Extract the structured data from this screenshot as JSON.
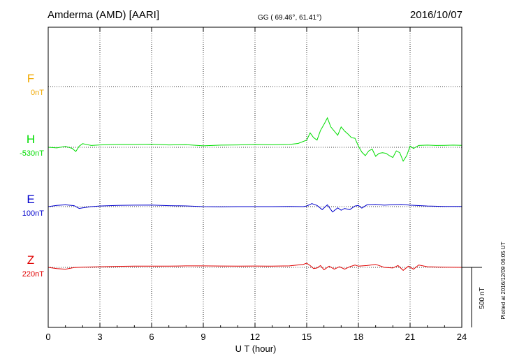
{
  "header": {
    "station": "Amderma (AMD)  [AARI]",
    "coords": "GG ( 69.46°,  61.41°)",
    "date": "2016/10/07"
  },
  "footer_note": "Plotted at 2016/12/09 06:05 UT",
  "scale_label": "500 nT",
  "colors": {
    "F": "#f0a800",
    "H": "#00dd00",
    "E": "#0000cc",
    "Z": "#e00000"
  },
  "chart_data": {
    "type": "line",
    "xlabel": "U T (hour)",
    "xlim": [
      0,
      24
    ],
    "xticks": [
      0,
      3,
      6,
      9,
      12,
      15,
      18,
      21,
      24
    ],
    "scale_nT": 500,
    "grid": true,
    "series": [
      {
        "name": "F",
        "offset_label": "0nT",
        "baseline_nT": 0,
        "x": [],
        "y": []
      },
      {
        "name": "H",
        "offset_label": "-530nT",
        "baseline_nT": -530,
        "x": [
          0,
          0.5,
          1,
          1.4,
          1.6,
          1.8,
          2,
          2.5,
          3,
          4,
          5,
          6,
          7,
          8,
          9,
          10,
          11,
          12,
          13,
          14,
          14.5,
          15,
          15.2,
          15.4,
          15.6,
          15.8,
          16,
          16.2,
          16.4,
          16.6,
          16.8,
          17,
          17.2,
          17.4,
          17.6,
          17.8,
          18,
          18.2,
          18.4,
          18.6,
          18.8,
          19,
          19.2,
          19.4,
          19.6,
          19.8,
          20,
          20.2,
          20.4,
          20.6,
          20.8,
          21,
          21.2,
          21.5,
          22,
          22.5,
          23,
          23.5,
          24
        ],
        "y": [
          -530,
          -535,
          -522,
          -540,
          -565,
          -520,
          -500,
          -515,
          -510,
          -506,
          -506,
          -504,
          -510,
          -508,
          -518,
          -512,
          -510,
          -507,
          -509,
          -506,
          -498,
          -470,
          -410,
          -450,
          -470,
          -390,
          -340,
          -285,
          -360,
          -395,
          -430,
          -360,
          -395,
          -420,
          -450,
          -455,
          -520,
          -570,
          -600,
          -560,
          -545,
          -605,
          -580,
          -575,
          -580,
          -600,
          -615,
          -560,
          -575,
          -645,
          -600,
          -520,
          -540,
          -515,
          -512,
          -515,
          -514,
          -512,
          -514
        ]
      },
      {
        "name": "E",
        "offset_label": "100nT",
        "baseline_nT": 100,
        "x": [
          0,
          0.5,
          1,
          1.5,
          1.8,
          2,
          2.5,
          3,
          4,
          5,
          6,
          7,
          8,
          9,
          10,
          11,
          12,
          13,
          14,
          14.8,
          15,
          15.3,
          15.6,
          15.9,
          16.2,
          16.5,
          16.8,
          17,
          17.2,
          17.5,
          17.8,
          18,
          18.2,
          18.5,
          19,
          19.5,
          20,
          20.5,
          21,
          22,
          23,
          24
        ],
        "y": [
          100,
          110,
          115,
          108,
          85,
          90,
          100,
          105,
          110,
          112,
          113,
          108,
          106,
          100,
          98,
          100,
          100,
          100,
          101,
          100,
          105,
          125,
          110,
          75,
          115,
          55,
          90,
          70,
          85,
          75,
          105,
          110,
          88,
          115,
          118,
          112,
          116,
          118,
          112,
          105,
          102,
          101
        ]
      },
      {
        "name": "Z",
        "offset_label": "220nT",
        "baseline_nT": 220,
        "x": [
          0,
          0.5,
          1,
          1.5,
          2,
          3,
          4,
          5,
          6,
          7,
          8,
          9,
          10,
          11,
          12,
          13,
          14,
          14.8,
          15,
          15.2,
          15.4,
          15.6,
          15.8,
          16,
          16.3,
          16.6,
          16.9,
          17.2,
          17.5,
          17.8,
          18,
          18.5,
          19,
          19.5,
          20,
          20.3,
          20.6,
          20.9,
          21.2,
          21.5,
          22,
          23,
          24
        ],
        "y": [
          220,
          210,
          205,
          218,
          222,
          225,
          228,
          230,
          230,
          230,
          232,
          232,
          231,
          230,
          231,
          230,
          232,
          245,
          255,
          235,
          210,
          215,
          235,
          200,
          230,
          205,
          225,
          205,
          225,
          240,
          230,
          235,
          245,
          220,
          215,
          235,
          195,
          230,
          205,
          240,
          225,
          222,
          220
        ]
      }
    ]
  }
}
